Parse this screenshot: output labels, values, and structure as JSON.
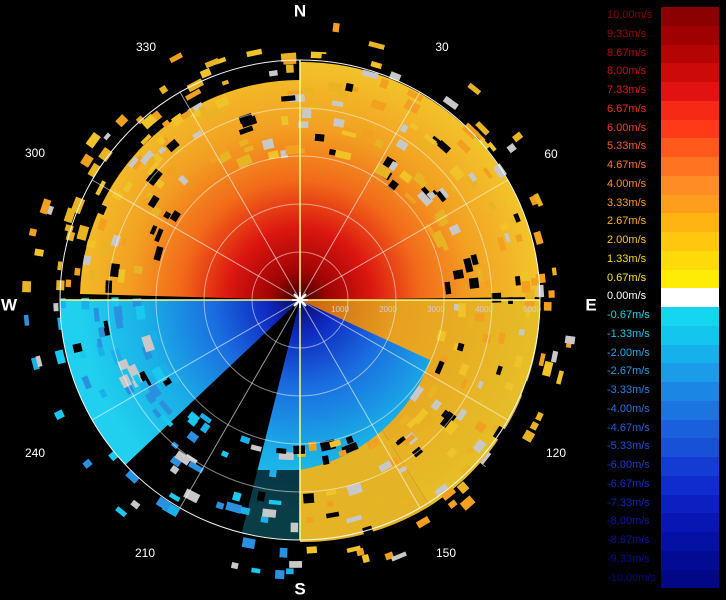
{
  "compass": {
    "north": "N",
    "south": "S",
    "east": "E",
    "west": "W"
  },
  "azimuth_labels": [
    "30",
    "60",
    "120",
    "150",
    "210",
    "240",
    "300",
    "330"
  ],
  "range_labels": [
    "1000",
    "2000",
    "3000",
    "4000",
    "5000"
  ],
  "legend": [
    {
      "label": "10.00m/s",
      "color": "#8b0000"
    },
    {
      "label": "9.33m/s",
      "color": "#a00000"
    },
    {
      "label": "8.67m/s",
      "color": "#b40404"
    },
    {
      "label": "8.00m/s",
      "color": "#cc0a0a"
    },
    {
      "label": "7.33m/s",
      "color": "#e21212"
    },
    {
      "label": "6.67m/s",
      "color": "#f52a14"
    },
    {
      "label": "6.00m/s",
      "color": "#ff3a18"
    },
    {
      "label": "5.33m/s",
      "color": "#ff5a1c"
    },
    {
      "label": "4.67m/s",
      "color": "#ff7420"
    },
    {
      "label": "4.00m/s",
      "color": "#ff8c24"
    },
    {
      "label": "3.33m/s",
      "color": "#ff9e1c"
    },
    {
      "label": "2.67m/s",
      "color": "#ffb414"
    },
    {
      "label": "2.00m/s",
      "color": "#ffc80e"
    },
    {
      "label": "1.33m/s",
      "color": "#ffda0a"
    },
    {
      "label": "0.67m/s",
      "color": "#ffec06"
    },
    {
      "label": "0.00m/s",
      "color": "#ffffff"
    },
    {
      "label": "-0.67m/s",
      "color": "#15d6f0"
    },
    {
      "label": "-1.33m/s",
      "color": "#14c6ee"
    },
    {
      "label": "-2.00m/s",
      "color": "#16b0ec"
    },
    {
      "label": "-2.67m/s",
      "color": "#1a9ce8"
    },
    {
      "label": "-3.33m/s",
      "color": "#1c86e4"
    },
    {
      "label": "-4.00m/s",
      "color": "#1c74e0"
    },
    {
      "label": "-4.67m/s",
      "color": "#1a60dc"
    },
    {
      "label": "-5.33m/s",
      "color": "#1850d8"
    },
    {
      "label": "-6.00m/s",
      "color": "#143cd4"
    },
    {
      "label": "-6.67m/s",
      "color": "#102ccc"
    },
    {
      "label": "-7.33m/s",
      "color": "#0c20c2"
    },
    {
      "label": "-8.00m/s",
      "color": "#0816b4"
    },
    {
      "label": "-8.67m/s",
      "color": "#0510a4"
    },
    {
      "label": "-9.33m/s",
      "color": "#030b94"
    },
    {
      "label": "-10.00m/s",
      "color": "#020885"
    }
  ]
}
